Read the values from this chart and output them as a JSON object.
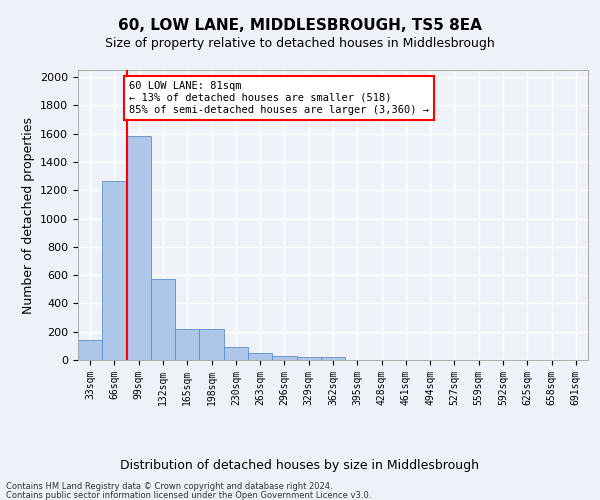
{
  "title": "60, LOW LANE, MIDDLESBROUGH, TS5 8EA",
  "subtitle": "Size of property relative to detached houses in Middlesbrough",
  "xlabel": "Distribution of detached houses by size in Middlesbrough",
  "ylabel": "Number of detached properties",
  "categories": [
    "33sqm",
    "66sqm",
    "99sqm",
    "132sqm",
    "165sqm",
    "198sqm",
    "230sqm",
    "263sqm",
    "296sqm",
    "329sqm",
    "362sqm",
    "395sqm",
    "428sqm",
    "461sqm",
    "494sqm",
    "527sqm",
    "559sqm",
    "592sqm",
    "625sqm",
    "658sqm",
    "691sqm"
  ],
  "values": [
    140,
    1265,
    1580,
    570,
    220,
    220,
    95,
    50,
    28,
    18,
    18,
    0,
    0,
    0,
    0,
    0,
    0,
    0,
    0,
    0,
    0
  ],
  "bar_color": "#aec6e8",
  "bar_edge_color": "#5b8fc9",
  "vline_x": 1.5,
  "vline_color": "red",
  "annotation_text": "60 LOW LANE: 81sqm\n← 13% of detached houses are smaller (518)\n85% of semi-detached houses are larger (3,360) →",
  "annotation_box_color": "white",
  "annotation_box_edge": "red",
  "ylim": [
    0,
    2050
  ],
  "yticks": [
    0,
    200,
    400,
    600,
    800,
    1000,
    1200,
    1400,
    1600,
    1800,
    2000
  ],
  "footnote1": "Contains HM Land Registry data © Crown copyright and database right 2024.",
  "footnote2": "Contains public sector information licensed under the Open Government Licence v3.0.",
  "bg_color": "#eef2f8",
  "grid_color": "white",
  "title_fontsize": 11,
  "subtitle_fontsize": 9,
  "xlabel_fontsize": 9,
  "ylabel_fontsize": 9,
  "footnote_fontsize": 6
}
